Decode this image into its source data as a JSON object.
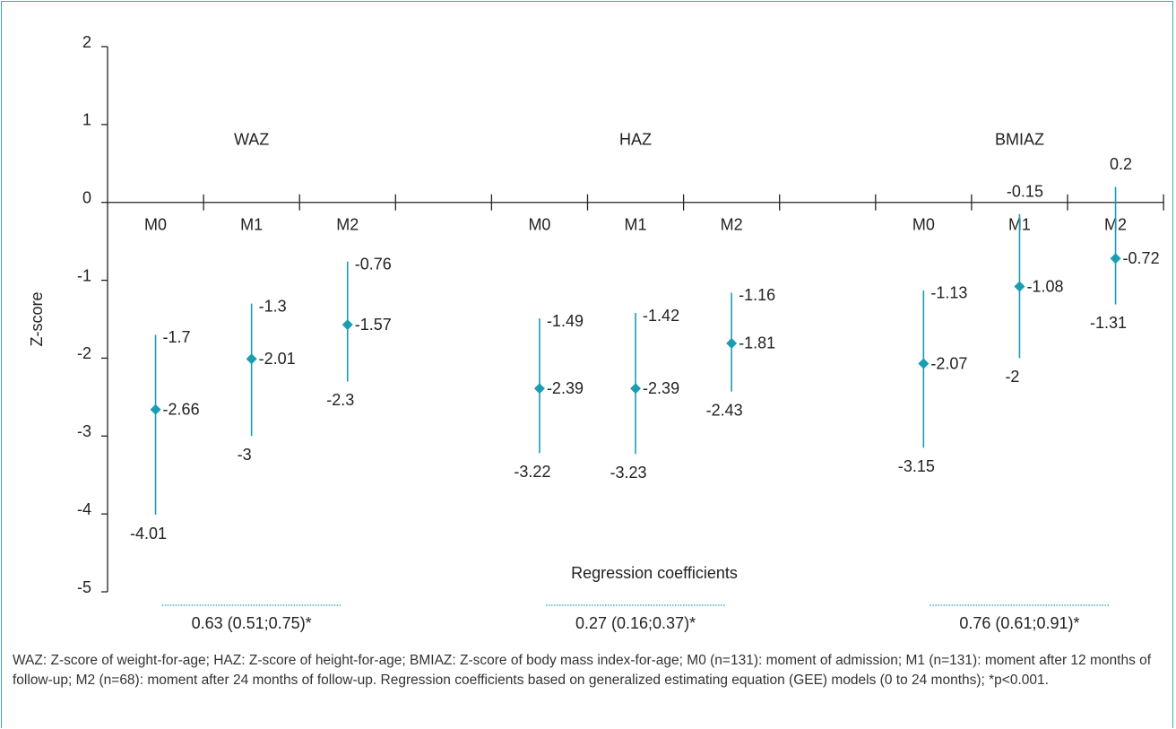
{
  "chart_data": {
    "type": "errorbar",
    "y_label": "Z-score",
    "categories": [
      "M0",
      "M1",
      "M2",
      null,
      "M0",
      "M1",
      "M2",
      null,
      "M0",
      "M1",
      "M2"
    ],
    "groups": [
      "WAZ",
      "HAZ",
      "BMIAZ"
    ],
    "values": [
      -2.66,
      -2.01,
      -1.57,
      null,
      -2.39,
      -2.39,
      -1.81,
      null,
      -2.07,
      -1.08,
      -0.72
    ],
    "lower": [
      -4.01,
      -3,
      -2.3,
      null,
      -3.22,
      -3.23,
      -2.43,
      null,
      -3.15,
      -2,
      -1.31
    ],
    "upper": [
      -1.7,
      -1.3,
      -0.76,
      null,
      -1.49,
      -1.42,
      -1.16,
      null,
      -1.13,
      -0.15,
      0.2
    ],
    "color": "#1a9db3",
    "ylim": [
      -5,
      2
    ],
    "yticks": [
      -5,
      -4,
      -3,
      -2,
      -1,
      0,
      1,
      2
    ],
    "coefficients_title": "Regression coefficients",
    "coefficients": [
      "0.63 (0.51;0.75)*",
      "0.27 (0.16;0.37)*",
      "0.76 (0.61;0.91)*"
    ]
  },
  "footnote": "WAZ: Z-score of weight-for-age; HAZ: Z-score of height-for-age; BMIAZ: Z-score of body mass index-for-age; M0 (n=131): moment of admission; M1 (n=131): moment after 12 months of follow-up; M2 (n=68): moment after 24 months of follow-up. Regression coefficients based on generalized estimating equation (GEE) models (0 to 24 months); *p<0.001."
}
